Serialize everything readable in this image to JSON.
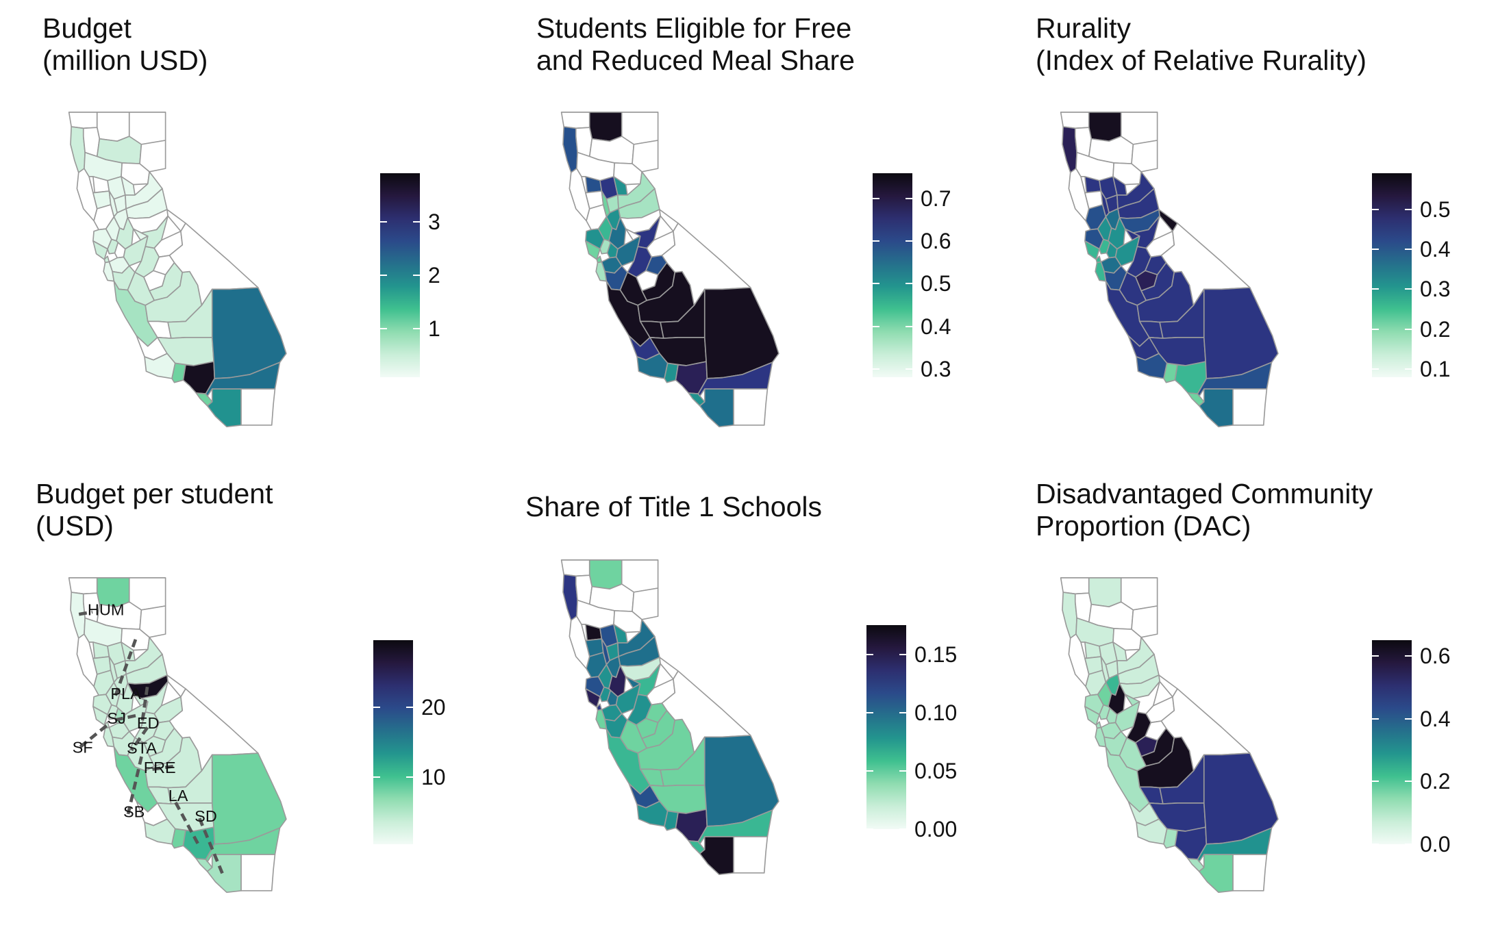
{
  "colors": {
    "c0": "#e6f8ee",
    "c1": "#cdeedb",
    "c2": "#a6e3c2",
    "c3": "#6fd3a0",
    "c4": "#3ab793",
    "c5": "#21928f",
    "c6": "#1f6f8c",
    "c7": "#26508c",
    "c8": "#2c3582",
    "c9": "#2a2056",
    "c10": "#160f1f",
    "gradient": [
      "#f2fbf6",
      "#c9eed8",
      "#8fdcb0",
      "#3fc08f",
      "#23958e",
      "#25708c",
      "#2b4a8a",
      "#2d2f70",
      "#25183e",
      "#0c0a10"
    ]
  },
  "panels": [
    {
      "id": "budget",
      "title": "Budget\n(million USD)",
      "legend": {
        "ticks": [
          {
            "label": "1",
            "v": 1
          },
          {
            "label": "2",
            "v": 2
          },
          {
            "label": "3",
            "v": 3
          }
        ],
        "min": 0.1,
        "max": 3.9
      },
      "fills": {
        "DN": "w",
        "HU": "c1",
        "SI": "w",
        "MO": "w",
        "TR": "w",
        "SH": "c1",
        "LA": "w",
        "TE": "c0",
        "PL": "w",
        "ME": "w",
        "GL": "w",
        "BU": "c0",
        "MN": "c0",
        "LK": "w",
        "CO": "c0",
        "SU": "c0",
        "YU": "c0",
        "NE": "c0",
        "PA": "c0",
        "SO": "c0",
        "NA": "c0",
        "YO": "c0",
        "SA": "c1",
        "ED": "w",
        "AL": "w",
        "MA": "c1",
        "SF": "c1",
        "SO2": "c1",
        "SL": "w",
        "AM": "c0",
        "CA": "c1",
        "TU": "w",
        "SJ": "c1",
        "ST": "c1",
        "AL2": "c0",
        "MP": "w",
        "MR": "w",
        "MD": "c1",
        "FR": "c1",
        "SC": "c1",
        "SM": "c0",
        "SB": "c1",
        "MO2": "c2",
        "SN": "c1",
        "KI": "w",
        "TU2": "c1",
        "IN": "w",
        "KE": "c1",
        "SLO": "w",
        "SBA": "c0",
        "VE": "c3",
        "LOS": "c10",
        "SBE": "c6",
        "RI": "c6",
        "OR": "c3",
        "SD": "c5",
        "IM": "w"
      }
    },
    {
      "id": "frpm",
      "title": "Students Eligible for Free\nand Reduced Meal Share",
      "legend": {
        "ticks": [
          {
            "label": "0.3",
            "v": 0.3
          },
          {
            "label": "0.4",
            "v": 0.4
          },
          {
            "label": "0.5",
            "v": 0.5
          },
          {
            "label": "0.6",
            "v": 0.6
          },
          {
            "label": "0.7",
            "v": 0.7
          }
        ],
        "min": 0.28,
        "max": 0.76
      },
      "fills": {
        "DN": "w",
        "HU": "c7",
        "SI": "c10",
        "MO": "w",
        "TR": "w",
        "SH": "w",
        "LA": "w",
        "TE": "w",
        "PL": "w",
        "ME": "w",
        "GL": "c7",
        "BU": "c8",
        "MN": "w",
        "LK": "w",
        "CO": "c3",
        "SU": "c2",
        "YU": "c5",
        "NE": "c2",
        "PA": "c2",
        "SO": "c5",
        "NA": "c4",
        "YO": "c5",
        "SA": "c6",
        "ED": "w",
        "AL": "w",
        "MA": "c3",
        "SF": "c3",
        "SO2": "c2",
        "SL": "c5",
        "AM": "w",
        "CA": "c8",
        "TU": "w",
        "SJ": "c6",
        "ST": "c8",
        "AL2": "c6",
        "MP": "c7",
        "MR": "w",
        "MD": "c10",
        "FR": "c10",
        "SC": "c7",
        "SM": "c2",
        "SB": "c10",
        "MO2": "c10",
        "SN": "c10",
        "KI": "c10",
        "TU2": "c10",
        "IN": "w",
        "KE": "c10",
        "SLO": "c8",
        "SBA": "c6",
        "VE": "c5",
        "LOS": "c9",
        "SBE": "c10",
        "RI": "c8",
        "OR": "c5",
        "SD": "c6",
        "IM": "w"
      }
    },
    {
      "id": "rurality",
      "title": "Rurality\n(Index of Relative Rurality)",
      "legend": {
        "ticks": [
          {
            "label": "0.1",
            "v": 0.1
          },
          {
            "label": "0.2",
            "v": 0.2
          },
          {
            "label": "0.3",
            "v": 0.3
          },
          {
            "label": "0.4",
            "v": 0.4
          },
          {
            "label": "0.5",
            "v": 0.5
          }
        ],
        "min": 0.08,
        "max": 0.59
      },
      "fills": {
        "DN": "w",
        "HU": "c9",
        "SI": "c10",
        "MO": "w",
        "TR": "w",
        "SH": "w",
        "LA": "w",
        "TE": "w",
        "PL": "w",
        "ME": "w",
        "GL": "c8",
        "BU": "c8",
        "MN": "w",
        "LK": "c7",
        "CO": "c8",
        "SU": "c8",
        "YU": "c8",
        "NE": "c8",
        "PA": "c8",
        "SO": "c7",
        "NA": "c5",
        "YO": "c6",
        "SA": "c5",
        "ED": "c7",
        "AL": "c10",
        "MA": "c4",
        "SF": "c4",
        "SO2": "c4",
        "SL": "c5",
        "AM": "c8",
        "CA": "c8",
        "TU": "w",
        "SJ": "c5",
        "ST": "c8",
        "AL2": "c6",
        "MP": "c8",
        "MR": "c9",
        "MD": "c8",
        "FR": "c8",
        "SC": "c7",
        "SM": "c4",
        "SB": "c8",
        "MO2": "c8",
        "SN": "c8",
        "KI": "c8",
        "TU2": "c8",
        "IN": "w",
        "KE": "c8",
        "SLO": "c8",
        "SBA": "c7",
        "VE": "c3",
        "LOS": "c4",
        "SBE": "c8",
        "RI": "c7",
        "OR": "c3",
        "SD": "c6",
        "IM": "w"
      }
    },
    {
      "id": "budget-per-student",
      "title": "Budget per student\n(USD)",
      "legend": {
        "ticks": [
          {
            "label": "10",
            "v": 10
          },
          {
            "label": "20",
            "v": 20
          }
        ],
        "min": 0.5,
        "max": 29.5
      },
      "fills": {
        "DN": "w",
        "HU": "c0",
        "SI": "c3",
        "MO": "w",
        "TR": "w",
        "SH": "w",
        "LA": "w",
        "TE": "c0",
        "PL": "w",
        "ME": "w",
        "GL": "c1",
        "BU": "c1",
        "MN": "c1",
        "LK": "c1",
        "CO": "c1",
        "SU": "c1",
        "YU": "c1",
        "NE": "c1",
        "PA": "c1",
        "SO": "c1",
        "NA": "c1",
        "YO": "c1",
        "SA": "c1",
        "ED": "c10",
        "AL": "w",
        "MA": "c1",
        "SF": "c1",
        "SO2": "c1",
        "SL": "c2",
        "AM": "c1",
        "CA": "c1",
        "TU": "c1",
        "SJ": "c1",
        "ST": "c1",
        "AL2": "c1",
        "MP": "c1",
        "MR": "c1",
        "MD": "c1",
        "FR": "c1",
        "SC": "c1",
        "SM": "c1",
        "SB": "c1",
        "MO2": "c3",
        "SN": "c1",
        "KI": "c1",
        "TU2": "c1",
        "IN": "w",
        "KE": "c1",
        "SLO": "w",
        "SBA": "c1",
        "VE": "c3",
        "LOS": "c4",
        "SBE": "c3",
        "RI": "c3",
        "OR": "c2",
        "SD": "c2",
        "IM": "w"
      },
      "labels": [
        {
          "text": "HUM"
        },
        {
          "text": "PLA"
        },
        {
          "text": "SJ"
        },
        {
          "text": "ED"
        },
        {
          "text": "SF"
        },
        {
          "text": "STA"
        },
        {
          "text": "FRE"
        },
        {
          "text": "LA"
        },
        {
          "text": "SB"
        },
        {
          "text": "SD"
        }
      ]
    },
    {
      "id": "title1",
      "title": "Share of Title 1 Schools",
      "legend": {
        "ticks": [
          {
            "label": "0.00",
            "v": 0.0
          },
          {
            "label": "0.05",
            "v": 0.05
          },
          {
            "label": "0.10",
            "v": 0.1
          },
          {
            "label": "0.15",
            "v": 0.15
          }
        ],
        "min": 0.0,
        "max": 0.175
      },
      "fills": {
        "DN": "w",
        "HU": "c8",
        "SI": "c3",
        "MO": "w",
        "TR": "w",
        "SH": "w",
        "LA": "w",
        "TE": "w",
        "PL": "w",
        "ME": "w",
        "GL": "c10",
        "BU": "c7",
        "MN": "c6",
        "LK": "c6",
        "CO": "c7",
        "SU": "c5",
        "YU": "c5",
        "NE": "c6",
        "PA": "c6",
        "SO": "c7",
        "NA": "c5",
        "YO": "c6",
        "SA": "c9",
        "ED": "c1",
        "AL": "w",
        "MA": "c9",
        "SF": "c8",
        "SO2": "c5",
        "SL": "c6",
        "AM": "c6",
        "CA": "c4",
        "TU": "w",
        "SJ": "c5",
        "ST": "c5",
        "AL2": "c5",
        "MP": "c3",
        "MR": "c3",
        "MD": "c3",
        "FR": "c3",
        "SC": "c5",
        "SM": "c3",
        "SB": "c3",
        "MO2": "c4",
        "SN": "c3",
        "KI": "c3",
        "TU2": "c3",
        "IN": "w",
        "KE": "c3",
        "SLO": "c7",
        "SBA": "c5",
        "VE": "c5",
        "LOS": "c9",
        "SBE": "c6",
        "RI": "c4",
        "OR": "c4",
        "SD": "c10",
        "IM": "w"
      }
    },
    {
      "id": "dac",
      "title": "Disadvantaged Community\nProportion (DAC)",
      "legend": {
        "ticks": [
          {
            "label": "0.0",
            "v": 0.0
          },
          {
            "label": "0.2",
            "v": 0.2
          },
          {
            "label": "0.4",
            "v": 0.4
          },
          {
            "label": "0.6",
            "v": 0.6
          }
        ],
        "min": 0.0,
        "max": 0.65
      },
      "fills": {
        "DN": "w",
        "HU": "c1",
        "SI": "c1",
        "MO": "w",
        "TR": "w",
        "SH": "w",
        "LA": "w",
        "TE": "c1",
        "PL": "w",
        "ME": "w",
        "GL": "c1",
        "BU": "c1",
        "MN": "c1",
        "LK": "c1",
        "CO": "c1",
        "SU": "c1",
        "YU": "c1",
        "NE": "c1",
        "PA": "c1",
        "SO": "c2",
        "NA": "c3",
        "YO": "c4",
        "SA": "c10",
        "ED": "c1",
        "AL": "w",
        "MA": "c2",
        "SF": "c2",
        "SO2": "c2",
        "SL": "c2",
        "AM": "c2",
        "CA": "w",
        "TU": "w",
        "SJ": "c2",
        "ST": "c10",
        "AL2": "c2",
        "MP": "w",
        "MR": "c9",
        "MD": "c10",
        "FR": "c10",
        "SC": "c2",
        "SM": "c2",
        "SB": "c2",
        "MO2": "c2",
        "SN": "c8",
        "KI": "c8",
        "TU2": "c8",
        "IN": "w",
        "KE": "c8",
        "SLO": "c1",
        "SBA": "c1",
        "VE": "c2",
        "LOS": "c8",
        "SBE": "c8",
        "RI": "c5",
        "OR": "c2",
        "SD": "c3",
        "IM": "w"
      }
    }
  ]
}
